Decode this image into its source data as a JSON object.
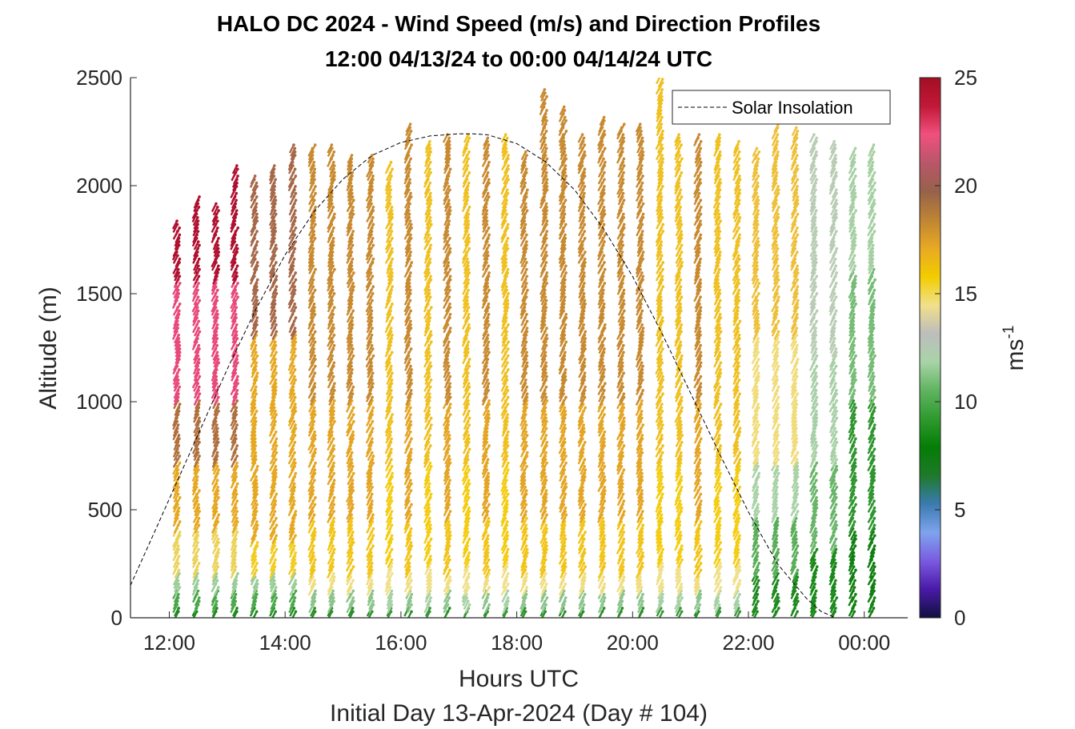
{
  "chart_data": {
    "type": "scatter",
    "title": [
      "HALO DC 2024 - Wind Speed (m/s) and Direction Profiles",
      "12:00 04/13/24 to 00:00 04/14/24  UTC"
    ],
    "xlabel": "Hours UTC",
    "subtitle": "Initial Day 13-Apr-2024 (Day # 104)",
    "ylabel": "Altitude (m)",
    "xlim": [
      11.33,
      24.75
    ],
    "ylim": [
      0,
      2500
    ],
    "x_ticks": [
      12,
      14,
      16,
      18,
      20,
      22,
      24
    ],
    "x_tick_labels": [
      "12:00",
      "14:00",
      "16:00",
      "18:00",
      "20:00",
      "22:00",
      "00:00"
    ],
    "y_ticks": [
      0,
      500,
      1000,
      1500,
      2000,
      2500
    ],
    "y_tick_labels": [
      "0",
      "500",
      "1000",
      "1500",
      "2000",
      "2500"
    ],
    "colorbar": {
      "label": "ms",
      "label_superscript": "-1",
      "range": [
        0,
        25
      ],
      "ticks": [
        0,
        5,
        10,
        15,
        20,
        25
      ],
      "tick_labels": [
        "0",
        "5",
        "10",
        "15",
        "20",
        "25"
      ],
      "colors": [
        "#101040",
        "#4a1aa8",
        "#7a5ae0",
        "#7ea4ee",
        "#3a7ab0",
        "#1e7a2a",
        "#057d05",
        "#2e9a2e",
        "#60b460",
        "#a9d3a8",
        "#bdbdbd",
        "#f1e08a",
        "#f2cc00",
        "#e8a923",
        "#bf8434",
        "#96624a",
        "#b9566a",
        "#f0507e",
        "#c21838",
        "#a30e22"
      ]
    },
    "legend": {
      "entries": [
        "Solar Insolation"
      ],
      "position": "top-right"
    },
    "series": [
      {
        "name": "Solar Insolation",
        "style": "dashed",
        "x": [
          11.33,
          11.75,
          12.0,
          12.5,
          13.0,
          13.5,
          14.0,
          14.5,
          15.0,
          15.5,
          16.0,
          16.5,
          17.0,
          17.25,
          17.5,
          18.0,
          18.5,
          19.0,
          19.5,
          20.0,
          20.5,
          21.0,
          21.5,
          22.0,
          22.5,
          23.0,
          23.25,
          23.5,
          23.75,
          24.0,
          24.5,
          24.75
        ],
        "y": [
          150,
          400,
          550,
          850,
          1150,
          1430,
          1680,
          1880,
          2030,
          2140,
          2200,
          2230,
          2240,
          2240,
          2235,
          2195,
          2110,
          1980,
          1800,
          1580,
          1320,
          1040,
          760,
          490,
          250,
          90,
          30,
          0,
          0,
          0,
          0,
          0
        ]
      }
    ],
    "profiles": [
      {
        "t": 12.13,
        "top": 1830,
        "kind": "A"
      },
      {
        "t": 12.47,
        "top": 1930,
        "kind": "A"
      },
      {
        "t": 12.8,
        "top": 1910,
        "kind": "A"
      },
      {
        "t": 13.13,
        "top": 2080,
        "kind": "A"
      },
      {
        "t": 13.47,
        "top": 2030,
        "kind": "B"
      },
      {
        "t": 13.8,
        "top": 2080,
        "kind": "B"
      },
      {
        "t": 14.13,
        "top": 2170,
        "kind": "B"
      },
      {
        "t": 14.47,
        "top": 2170,
        "kind": "C"
      },
      {
        "t": 14.8,
        "top": 2180,
        "kind": "C"
      },
      {
        "t": 15.13,
        "top": 2130,
        "kind": "C"
      },
      {
        "t": 15.47,
        "top": 2130,
        "kind": "C"
      },
      {
        "t": 15.8,
        "top": 2100,
        "kind": "D"
      },
      {
        "t": 16.13,
        "top": 2270,
        "kind": "C"
      },
      {
        "t": 16.47,
        "top": 2200,
        "kind": "D"
      },
      {
        "t": 16.8,
        "top": 2230,
        "kind": "C"
      },
      {
        "t": 17.13,
        "top": 2220,
        "kind": "D"
      },
      {
        "t": 17.47,
        "top": 2210,
        "kind": "C"
      },
      {
        "t": 17.8,
        "top": 2220,
        "kind": "D"
      },
      {
        "t": 18.13,
        "top": 2150,
        "kind": "C"
      },
      {
        "t": 18.47,
        "top": 2440,
        "kind": "C"
      },
      {
        "t": 18.8,
        "top": 2350,
        "kind": "C"
      },
      {
        "t": 19.13,
        "top": 2220,
        "kind": "C"
      },
      {
        "t": 19.47,
        "top": 2310,
        "kind": "C"
      },
      {
        "t": 19.8,
        "top": 2270,
        "kind": "C"
      },
      {
        "t": 20.13,
        "top": 2280,
        "kind": "C"
      },
      {
        "t": 20.47,
        "top": 2490,
        "kind": "D"
      },
      {
        "t": 20.8,
        "top": 2220,
        "kind": "D"
      },
      {
        "t": 21.13,
        "top": 2220,
        "kind": "C"
      },
      {
        "t": 21.47,
        "top": 2220,
        "kind": "D"
      },
      {
        "t": 21.8,
        "top": 2200,
        "kind": "D"
      },
      {
        "t": 22.13,
        "top": 2160,
        "kind": "E"
      },
      {
        "t": 22.47,
        "top": 2280,
        "kind": "E"
      },
      {
        "t": 22.8,
        "top": 2260,
        "kind": "E"
      },
      {
        "t": 23.13,
        "top": 2230,
        "kind": "F"
      },
      {
        "t": 23.47,
        "top": 2200,
        "kind": "F"
      },
      {
        "t": 23.8,
        "top": 2160,
        "kind": "G"
      },
      {
        "t": 24.13,
        "top": 2170,
        "kind": "G"
      }
    ]
  }
}
